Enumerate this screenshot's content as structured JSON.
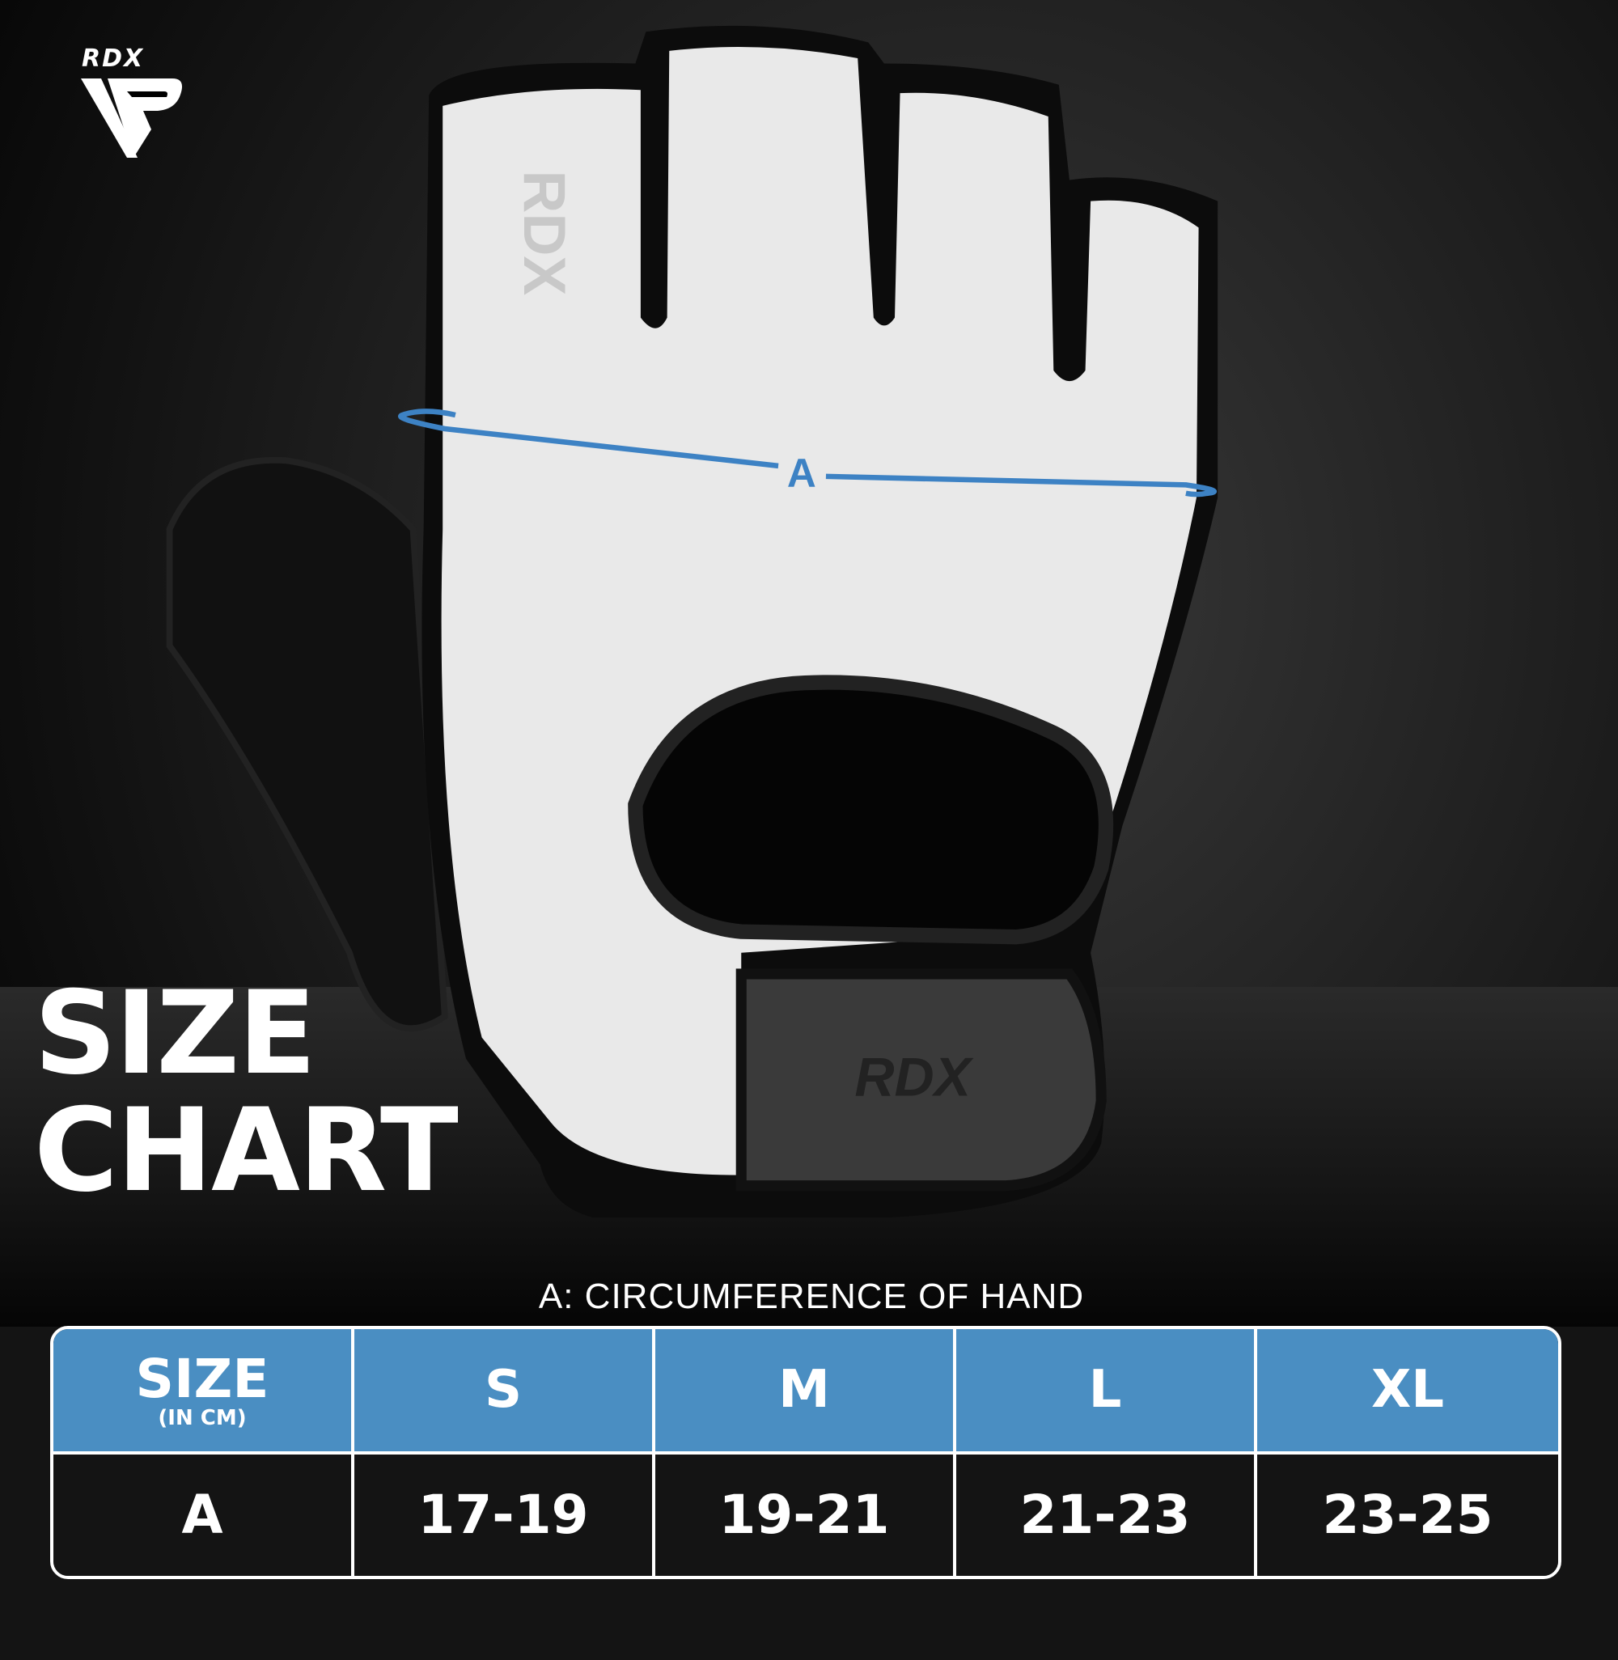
{
  "brand": {
    "logo_text": "RDX"
  },
  "title": {
    "line1": "SIZE",
    "line2": "CHART"
  },
  "measure_marker": "A",
  "caption": "A: CIRCUMFERENCE OF HAND",
  "colors": {
    "accent": "#4a8ec2",
    "row_bg": "#141414"
  },
  "table": {
    "header_label": "SIZE",
    "header_unit": "(IN CM)",
    "sizes": [
      "S",
      "M",
      "L",
      "XL"
    ],
    "rows": [
      {
        "label": "A",
        "values": [
          "17-19",
          "19-21",
          "21-23",
          "23-25"
        ]
      }
    ]
  }
}
